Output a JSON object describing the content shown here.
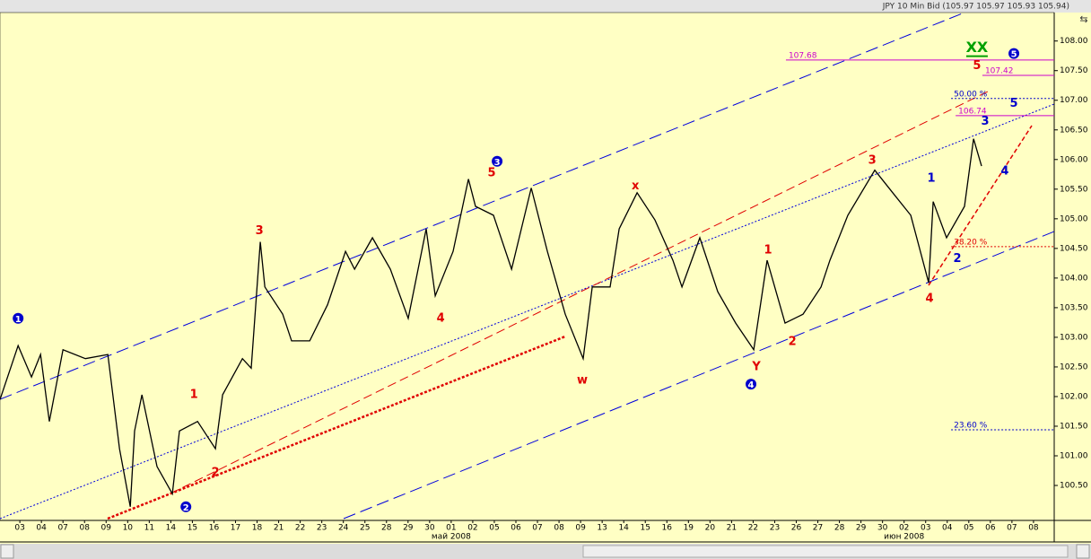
{
  "chart_data": {
    "type": "line",
    "title": "JPY 10 Min Bid (105.97 105.97 105.93 105.94)",
    "series": [
      {
        "name": "JPY",
        "color": "#000000",
        "x": [
          -0.92,
          -0.08,
          0.54,
          0.96,
          1.37,
          2.0,
          3.04,
          4.08,
          4.62,
          5.12,
          5.32,
          5.66,
          6.36,
          7.07,
          7.4,
          8.24,
          9.07,
          9.4,
          10.32,
          10.73,
          11.15,
          11.36,
          12.19,
          12.6,
          13.44,
          14.27,
          15.1,
          15.52,
          16.35,
          17.18,
          18.01,
          18.84,
          19.26,
          20.09,
          20.8,
          21.13,
          21.96,
          22.8,
          23.71,
          24.46,
          25.29,
          26.12,
          26.54,
          27.37,
          27.79,
          28.62,
          29.45,
          30.28,
          30.7,
          31.53,
          32.36,
          33.19,
          34.03,
          34.65,
          35.48,
          36.31,
          37.15,
          37.56,
          38.39,
          39.64,
          40.47,
          41.31,
          42.14,
          42.35,
          42.97,
          43.8,
          44.22,
          44.59
        ],
        "values": [
          101.95,
          102.86,
          102.33,
          102.71,
          101.58,
          102.79,
          102.64,
          102.71,
          101.12,
          100.14,
          101.42,
          102.03,
          100.82,
          100.36,
          101.42,
          101.58,
          101.12,
          102.03,
          102.64,
          102.48,
          104.61,
          103.85,
          103.39,
          102.94,
          102.94,
          103.55,
          104.45,
          104.15,
          104.68,
          104.15,
          103.32,
          104.83,
          103.7,
          104.45,
          105.67,
          105.21,
          105.06,
          104.15,
          105.52,
          104.45,
          103.39,
          102.64,
          103.85,
          103.85,
          104.83,
          105.44,
          104.98,
          104.3,
          103.85,
          104.68,
          103.77,
          103.24,
          102.79,
          104.3,
          103.24,
          103.39,
          103.85,
          104.3,
          105.06,
          105.82,
          105.44,
          105.06,
          103.92,
          105.29,
          104.68,
          105.21,
          106.35,
          105.89
        ]
      }
    ],
    "xlim": [
      -0.92,
      47.96
    ],
    "ylim": [
      99.91,
      108.48
    ],
    "xticks": [
      {
        "value": 0,
        "label": "03"
      },
      {
        "value": 1,
        "label": "04"
      },
      {
        "value": 2,
        "label": "07"
      },
      {
        "value": 3,
        "label": "08"
      },
      {
        "value": 4,
        "label": "09"
      },
      {
        "value": 5,
        "label": "10"
      },
      {
        "value": 6,
        "label": "11"
      },
      {
        "value": 7,
        "label": "14"
      },
      {
        "value": 8,
        "label": "15"
      },
      {
        "value": 9,
        "label": "16"
      },
      {
        "value": 10,
        "label": "17"
      },
      {
        "value": 11,
        "label": "18"
      },
      {
        "value": 12,
        "label": "21"
      },
      {
        "value": 13,
        "label": "22"
      },
      {
        "value": 14,
        "label": "23"
      },
      {
        "value": 15,
        "label": "24"
      },
      {
        "value": 16,
        "label": "25"
      },
      {
        "value": 17,
        "label": "28"
      },
      {
        "value": 18,
        "label": "29"
      },
      {
        "value": 19,
        "label": "30"
      },
      {
        "value": 20,
        "label": "01"
      },
      {
        "value": 21,
        "label": "02"
      },
      {
        "value": 22,
        "label": "05"
      },
      {
        "value": 23,
        "label": "06"
      },
      {
        "value": 24,
        "label": "07"
      },
      {
        "value": 25,
        "label": "08"
      },
      {
        "value": 26,
        "label": "09"
      },
      {
        "value": 27,
        "label": "13"
      },
      {
        "value": 28,
        "label": "14"
      },
      {
        "value": 29,
        "label": "15"
      },
      {
        "value": 30,
        "label": "16"
      },
      {
        "value": 31,
        "label": "19"
      },
      {
        "value": 32,
        "label": "20"
      },
      {
        "value": 33,
        "label": "21"
      },
      {
        "value": 34,
        "label": "22"
      },
      {
        "value": 35,
        "label": "23"
      },
      {
        "value": 36,
        "label": "26"
      },
      {
        "value": 37,
        "label": "27"
      },
      {
        "value": 38,
        "label": "28"
      },
      {
        "value": 39,
        "label": "29"
      },
      {
        "value": 40,
        "label": "30"
      },
      {
        "value": 41,
        "label": "02"
      },
      {
        "value": 42,
        "label": "03"
      },
      {
        "value": 43,
        "label": "04"
      },
      {
        "value": 44,
        "label": "05"
      },
      {
        "value": 45,
        "label": "06"
      },
      {
        "value": 46,
        "label": "07"
      },
      {
        "value": 47,
        "label": "08"
      }
    ],
    "month_labels": [
      {
        "value": 20,
        "label": "май 2008"
      },
      {
        "value": 41,
        "label": "июн 2008"
      }
    ],
    "yticks": [
      {
        "value": 100.5,
        "label": "100.50"
      },
      {
        "value": 101,
        "label": "101.00"
      },
      {
        "value": 101.5,
        "label": "101.50"
      },
      {
        "value": 102,
        "label": "102.00"
      },
      {
        "value": 102.5,
        "label": "102.50"
      },
      {
        "value": 103,
        "label": "103.00"
      },
      {
        "value": 103.5,
        "label": "103.50"
      },
      {
        "value": 104,
        "label": "104.00"
      },
      {
        "value": 104.5,
        "label": "104.50"
      },
      {
        "value": 105,
        "label": "105.00"
      },
      {
        "value": 105.5,
        "label": "105.50"
      },
      {
        "value": 106,
        "label": "106.00"
      },
      {
        "value": 106.5,
        "label": "106.50"
      },
      {
        "value": 107,
        "label": "107.00"
      },
      {
        "value": 107.5,
        "label": "107.50"
      },
      {
        "value": 108,
        "label": "108.00"
      }
    ],
    "levels": [
      {
        "label": "107.68",
        "value": 107.68,
        "from": 35.52,
        "color": "#cc00cc",
        "style": "solid"
      },
      {
        "label": "107.42",
        "value": 107.42,
        "from": 44.63,
        "color": "#cc00cc",
        "style": "solid"
      },
      {
        "label": "50.00 %",
        "value": 107.03,
        "from": 43.18,
        "color": "#0000cc",
        "style": "dotted"
      },
      {
        "label": "106.74",
        "value": 106.74,
        "from": 43.39,
        "color": "#cc00cc",
        "style": "solid"
      },
      {
        "label": "38.20 %",
        "value": 104.53,
        "from": 43.18,
        "color": "#e00000",
        "style": "dotted"
      },
      {
        "label": "23.60 %",
        "value": 101.44,
        "from": 43.18,
        "color": "#0000cc",
        "style": "dotted"
      }
    ],
    "annotations": [
      {
        "text": "1",
        "x": -0.08,
        "y": 103.32,
        "color": "#0000cc",
        "style": "circle"
      },
      {
        "text": "2",
        "x": 7.7,
        "y": 100.14,
        "color": "#0000cc",
        "style": "circle"
      },
      {
        "text": "3",
        "x": 22.13,
        "y": 105.97,
        "color": "#0000cc",
        "style": "circle"
      },
      {
        "text": "4",
        "x": 33.9,
        "y": 102.21,
        "color": "#0000cc",
        "style": "circle"
      },
      {
        "text": "5",
        "x": 46.09,
        "y": 107.79,
        "color": "#0000cc",
        "style": "circle"
      },
      {
        "text": "1",
        "x": 8.07,
        "y": 102.03,
        "color": "#e00000",
        "style": "plain"
      },
      {
        "text": "2",
        "x": 9.07,
        "y": 100.71,
        "color": "#e00000",
        "style": "plain"
      },
      {
        "text": "3",
        "x": 11.11,
        "y": 104.79,
        "color": "#e00000",
        "style": "plain"
      },
      {
        "text": "4",
        "x": 19.51,
        "y": 103.32,
        "color": "#e00000",
        "style": "plain"
      },
      {
        "text": "5",
        "x": 21.88,
        "y": 105.77,
        "color": "#e00000",
        "style": "plain"
      },
      {
        "text": "w",
        "x": 26.08,
        "y": 102.27,
        "color": "#e00000",
        "style": "plain"
      },
      {
        "text": "x",
        "x": 28.54,
        "y": 105.55,
        "color": "#e00000",
        "style": "plain"
      },
      {
        "text": "Y",
        "x": 34.15,
        "y": 102.5,
        "color": "#e00000",
        "style": "plain"
      },
      {
        "text": "1",
        "x": 34.69,
        "y": 104.47,
        "color": "#e00000",
        "style": "plain"
      },
      {
        "text": "2",
        "x": 35.82,
        "y": 102.92,
        "color": "#e00000",
        "style": "plain"
      },
      {
        "text": "3",
        "x": 39.52,
        "y": 105.98,
        "color": "#e00000",
        "style": "plain"
      },
      {
        "text": "4",
        "x": 42.18,
        "y": 103.65,
        "color": "#e00000",
        "style": "plain"
      },
      {
        "text": "5",
        "x": 44.38,
        "y": 107.58,
        "color": "#e00000",
        "style": "plain"
      },
      {
        "text": "1",
        "x": 42.26,
        "y": 105.68,
        "color": "#0000cc",
        "style": "plain"
      },
      {
        "text": "2",
        "x": 43.47,
        "y": 104.32,
        "color": "#0000cc",
        "style": "plain"
      },
      {
        "text": "3",
        "x": 44.76,
        "y": 106.64,
        "color": "#0000cc",
        "style": "plain"
      },
      {
        "text": "4",
        "x": 45.67,
        "y": 105.8,
        "color": "#0000cc",
        "style": "plain"
      },
      {
        "text": "5",
        "x": 46.09,
        "y": 106.94,
        "color": "#0000cc",
        "style": "plain"
      },
      {
        "text": "XX",
        "x": 44.38,
        "y": 107.88,
        "color": "#00a000",
        "style": "underline"
      }
    ]
  }
}
